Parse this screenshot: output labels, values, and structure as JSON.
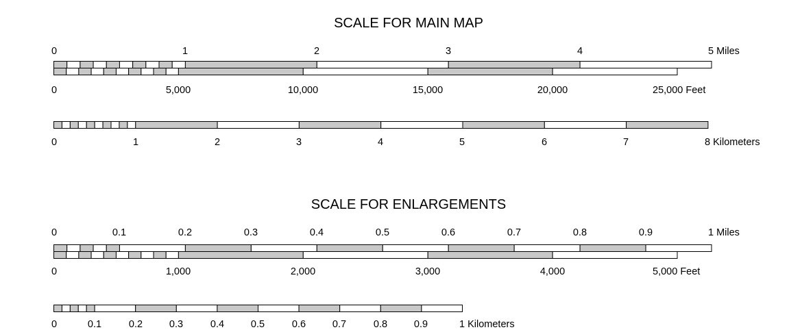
{
  "main_map": {
    "title": "SCALE FOR MAIN MAP",
    "miles": {
      "labels": [
        "0",
        "1",
        "2",
        "3",
        "4",
        "5 Miles"
      ],
      "max": 5,
      "subdivisions_first_unit": 10
    },
    "feet": {
      "labels": [
        "0",
        "5,000",
        "10,000",
        "15,000",
        "20,000",
        "25,000 Feet"
      ],
      "max": 25000,
      "subdivisions_first_unit": 10
    },
    "kilometers": {
      "labels": [
        "0",
        "1",
        "2",
        "3",
        "4",
        "5",
        "6",
        "7",
        "8 Kilometers"
      ],
      "max": 8,
      "subdivisions_first_unit": 10
    }
  },
  "enlargements": {
    "title": "SCALE FOR ENLARGEMENTS",
    "miles": {
      "labels": [
        "0",
        "0.1",
        "0.2",
        "0.3",
        "0.4",
        "0.5",
        "0.6",
        "0.7",
        "0.8",
        "0.9",
        "1 Miles"
      ],
      "max": 1,
      "subdivisions_first_unit": 5
    },
    "feet": {
      "labels": [
        "0",
        "1,000",
        "2,000",
        "3,000",
        "4,000",
        "5,000 Feet"
      ],
      "max": 5000,
      "subdivisions_first_unit": 10
    },
    "kilometers": {
      "labels": [
        "0",
        "0.1",
        "0.2",
        "0.3",
        "0.4",
        "0.5",
        "0.6",
        "0.7",
        "0.8",
        "0.9",
        "1 Kilometers"
      ],
      "max": 1,
      "subdivisions_first_unit": 5
    }
  },
  "colors": {
    "shaded": "#c8c8c8",
    "unshaded": "#ffffff",
    "outline": "#000000"
  }
}
